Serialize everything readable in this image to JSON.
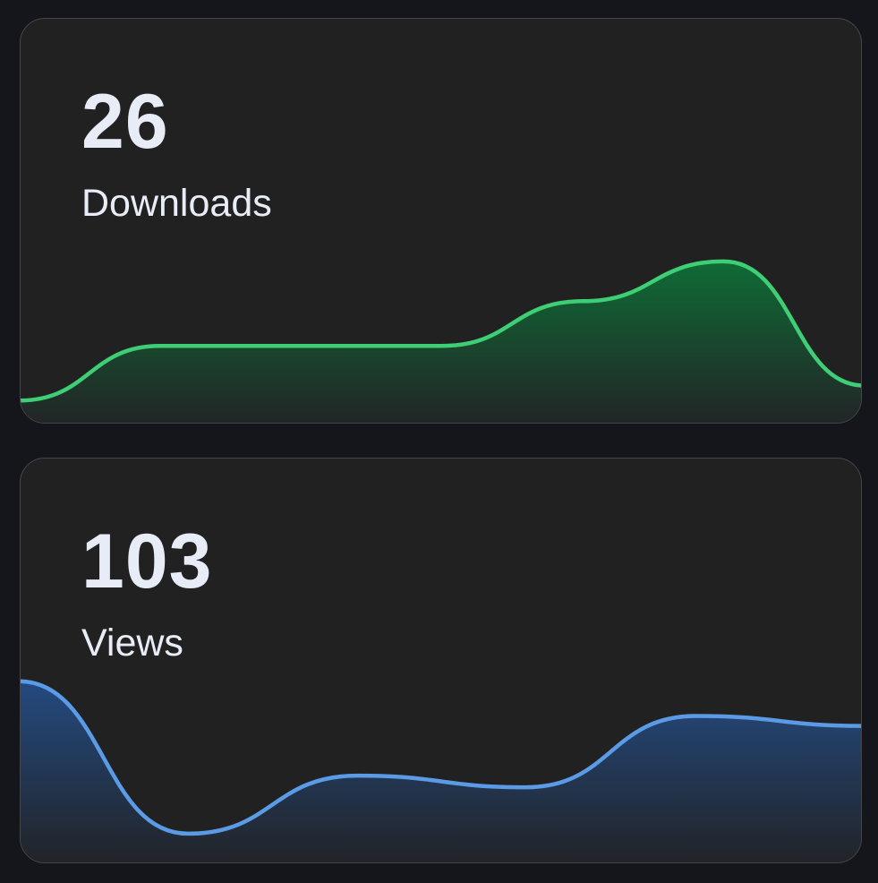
{
  "cards": [
    {
      "value": "26",
      "label": "Downloads",
      "color": "#3ecf76",
      "fill_top": "#0f6b35",
      "chart_data": {
        "type": "area",
        "values": [
          0.02,
          0.35,
          0.35,
          0.35,
          0.62,
          0.86,
          0.11
        ],
        "ylim": [
          0,
          1
        ]
      }
    },
    {
      "value": "103",
      "label": "Views",
      "color": "#5b9be6",
      "fill_top": "#234a80",
      "chart_data": {
        "type": "area",
        "values": [
          0.98,
          0.06,
          0.41,
          0.34,
          0.77,
          0.71
        ],
        "ylim": [
          0,
          1
        ]
      }
    }
  ]
}
